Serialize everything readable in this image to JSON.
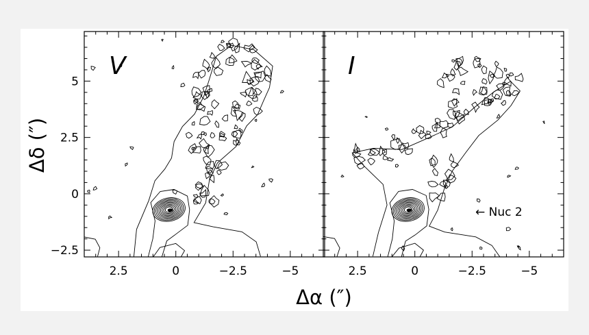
{
  "chart_data": {
    "type": "contour",
    "xlabel": "Δα (″)",
    "ylabel": "Δδ (″)",
    "xlim": [
      4.0,
      -6.5
    ],
    "ylim": [
      -2.8,
      7.2
    ],
    "x_ticks": [
      {
        "value": 2.5,
        "label": "2.5"
      },
      {
        "value": 0,
        "label": "0"
      },
      {
        "value": -2.5,
        "label": "−2.5"
      },
      {
        "value": -5,
        "label": "−5"
      }
    ],
    "y_ticks": [
      {
        "value": -2.5,
        "label": "−2.5"
      },
      {
        "value": 0,
        "label": "0"
      },
      {
        "value": 2.5,
        "label": "2.5"
      },
      {
        "value": 5,
        "label": "5"
      }
    ],
    "panels": [
      {
        "label": "V"
      },
      {
        "label": "I"
      }
    ],
    "annotation": {
      "text": "← Nuc 2",
      "x": -3.0,
      "y": -0.8
    },
    "nucleus": {
      "x": 0.3,
      "y": -0.7
    }
  }
}
